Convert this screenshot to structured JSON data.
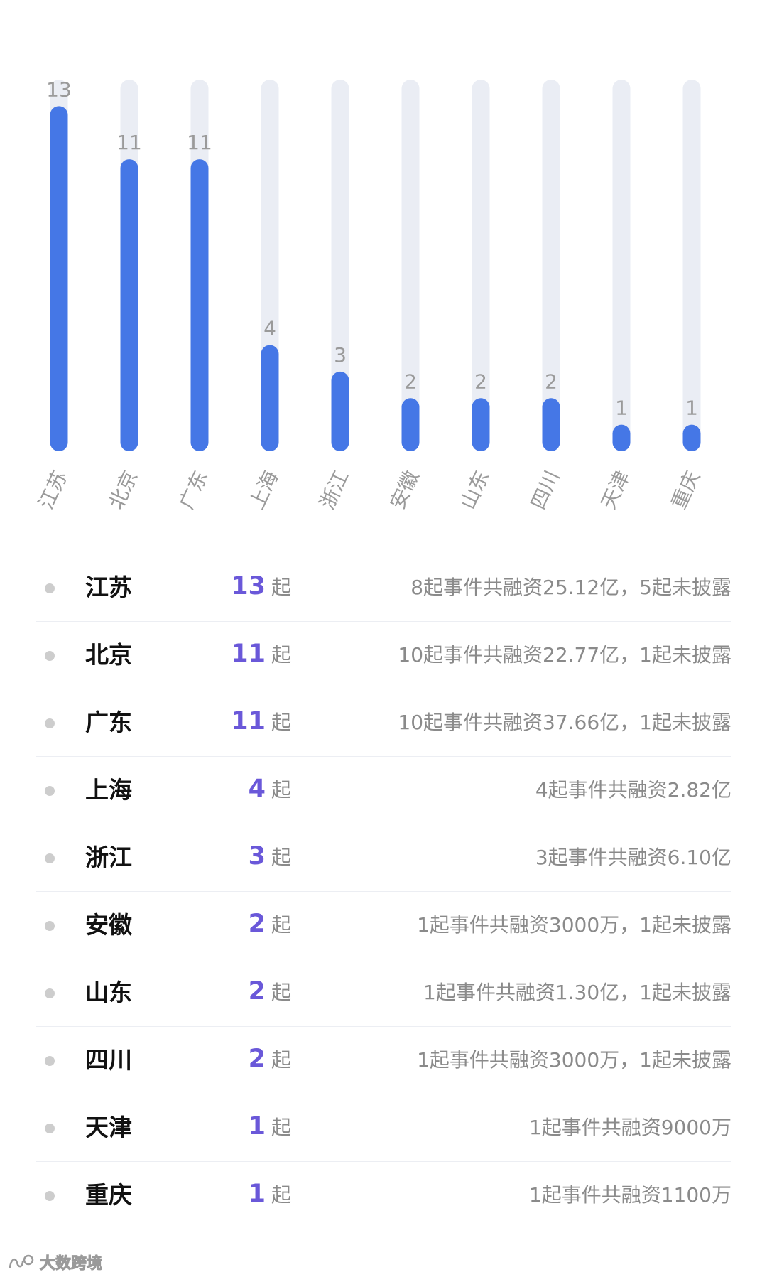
{
  "chart_data": {
    "type": "bar",
    "categories": [
      "江苏",
      "北京",
      "广东",
      "上海",
      "浙江",
      "安徽",
      "山东",
      "四川",
      "天津",
      "重庆"
    ],
    "values": [
      13,
      11,
      11,
      4,
      3,
      2,
      2,
      2,
      1,
      1
    ],
    "ylim": [
      0,
      14
    ],
    "title": "",
    "xlabel": "",
    "ylabel": "",
    "grid": false,
    "colors": {
      "bar": "#4577e6",
      "track": "#eaedf4",
      "value_label": "#9a9a9a",
      "category_label": "#9a9a9a"
    }
  },
  "list": {
    "items": [
      {
        "name": "江苏",
        "count": "13",
        "unit": "起",
        "detail": "8起事件共融资25.12亿，5起未披露"
      },
      {
        "name": "北京",
        "count": "11",
        "unit": "起",
        "detail": "10起事件共融资22.77亿，1起未披露"
      },
      {
        "name": "广东",
        "count": "11",
        "unit": "起",
        "detail": "10起事件共融资37.66亿，1起未披露"
      },
      {
        "name": "上海",
        "count": "4",
        "unit": "起",
        "detail": "4起事件共融资2.82亿"
      },
      {
        "name": "浙江",
        "count": "3",
        "unit": "起",
        "detail": "3起事件共融资6.10亿"
      },
      {
        "name": "安徽",
        "count": "2",
        "unit": "起",
        "detail": "1起事件共融资3000万，1起未披露"
      },
      {
        "name": "山东",
        "count": "2",
        "unit": "起",
        "detail": "1起事件共融资1.30亿，1起未披露"
      },
      {
        "name": "四川",
        "count": "2",
        "unit": "起",
        "detail": "1起事件共融资3000万，1起未披露"
      },
      {
        "name": "天津",
        "count": "1",
        "unit": "起",
        "detail": "1起事件共融资9000万"
      },
      {
        "name": "重庆",
        "count": "1",
        "unit": "起",
        "detail": "1起事件共融资1100万"
      }
    ]
  },
  "footer": {
    "logo_text": "大数跨境",
    "logo_icon": "wave-logo-icon"
  }
}
